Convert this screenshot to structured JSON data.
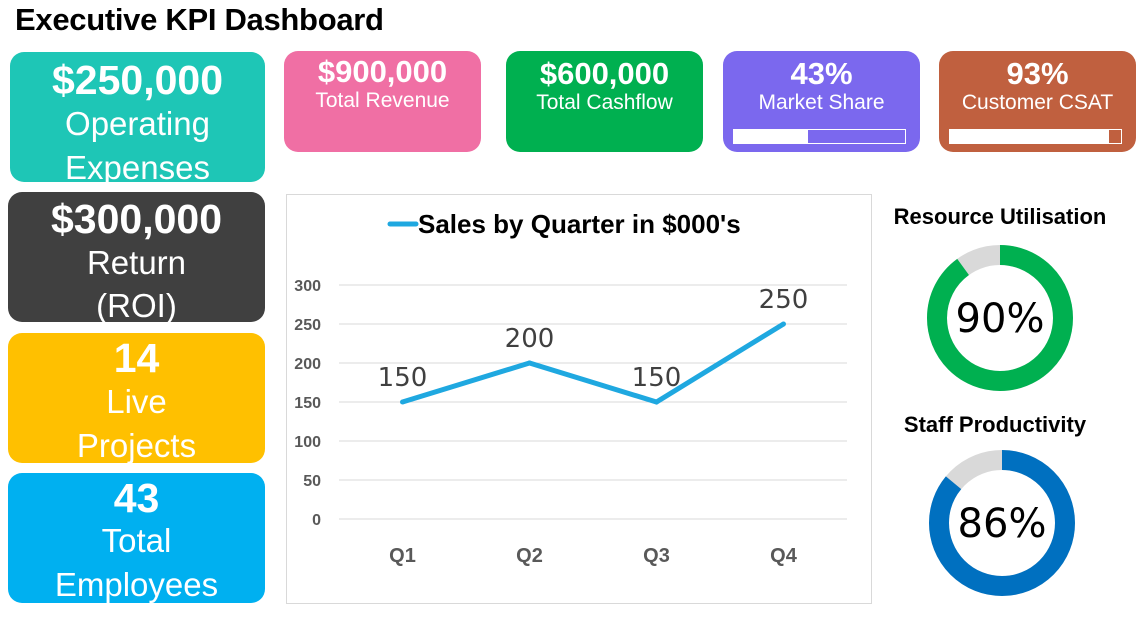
{
  "title": "Executive KPI Dashboard",
  "left_cards": [
    {
      "value": "$250,000",
      "label_lines": [
        "Operating",
        "Expenses"
      ],
      "color": "#1ec6b6"
    },
    {
      "value": "$300,000",
      "label_lines": [
        "Return",
        "(ROI)"
      ],
      "color": "#404040"
    },
    {
      "value": "14",
      "label_lines": [
        "Live",
        "Projects"
      ],
      "color": "#ffc000"
    },
    {
      "value": "43",
      "label_lines": [
        "Total",
        "Employees"
      ],
      "color": "#00b0f0"
    }
  ],
  "top_cards": [
    {
      "value": "$900,000",
      "label": "Total Revenue",
      "color": "#f06fa4"
    },
    {
      "value": "$600,000",
      "label": "Total Cashflow",
      "color": "#00b050"
    },
    {
      "value": "43%",
      "label": "Market Share",
      "color": "#7b68ee",
      "progress": 0.43
    },
    {
      "value": "93%",
      "label": "Customer CSAT",
      "color": "#c0603f",
      "progress": 0.93
    }
  ],
  "chart_data": {
    "type": "line",
    "title": "Sales by Quarter in $000's",
    "categories": [
      "Q1",
      "Q2",
      "Q3",
      "Q4"
    ],
    "series": [
      {
        "values": [
          150,
          200,
          150,
          250
        ],
        "color": "#1fa8e0"
      }
    ],
    "ylim": [
      0,
      300
    ],
    "yticks": [
      "0",
      "50",
      "100",
      "150",
      "200",
      "250",
      "300"
    ],
    "data_labels": [
      "150",
      "200",
      "150",
      "250"
    ],
    "grid": true,
    "legend": "top"
  },
  "gauges": [
    {
      "title": "Resource Utilisation",
      "value": 0.9,
      "label": "90%",
      "color": "#00b050",
      "track": "#d9d9d9"
    },
    {
      "title": "Staff Productivity",
      "value": 0.86,
      "label": "86%",
      "color": "#0070c0",
      "track": "#d9d9d9"
    }
  ]
}
